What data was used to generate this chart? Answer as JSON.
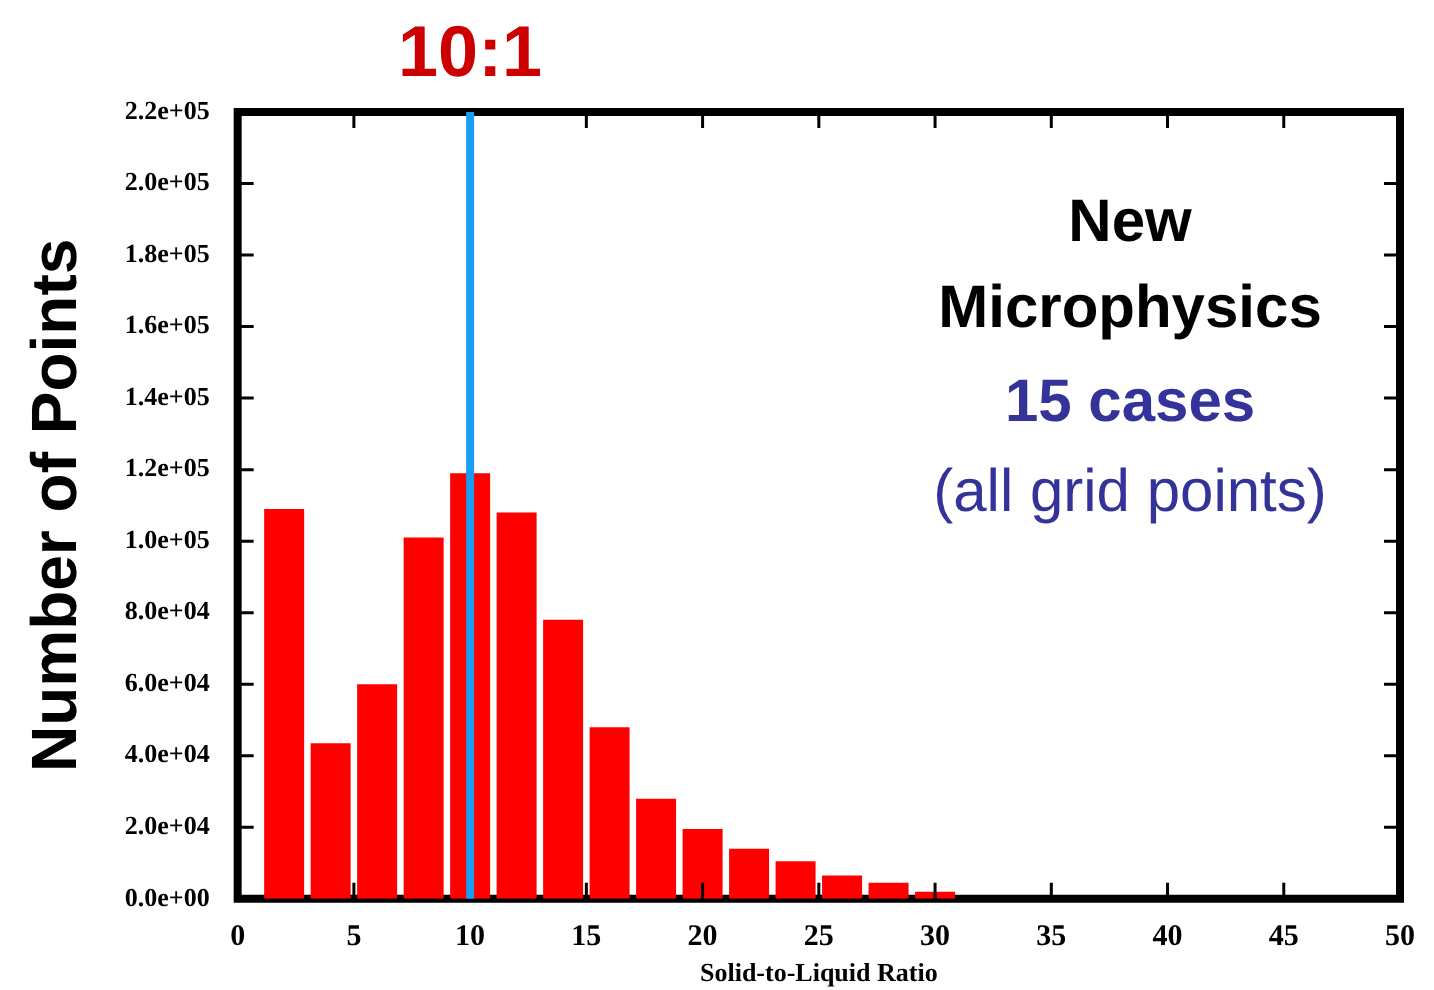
{
  "chart_data": {
    "type": "histogram",
    "xlabel": "Solid-to-Liquid Ratio",
    "ylabel": "Number of Points",
    "bins": [
      1,
      3,
      5,
      7,
      9,
      11,
      13,
      15,
      17,
      19,
      21,
      23,
      25,
      27,
      29,
      31
    ],
    "values": [
      109000,
      43500,
      60000,
      101000,
      119000,
      108000,
      78000,
      48000,
      28000,
      19500,
      14000,
      10500,
      6500,
      4500,
      2000
    ],
    "color": "#ff0000",
    "xlim": [
      0,
      50
    ],
    "xticks": [
      0,
      5,
      10,
      15,
      20,
      25,
      30,
      35,
      40,
      45,
      50
    ],
    "ylim": [
      0,
      220000
    ],
    "yticks": [
      {
        "value": 0,
        "label": "0.0e+00"
      },
      {
        "value": 20000,
        "label": "2.0e+04"
      },
      {
        "value": 40000,
        "label": "4.0e+04"
      },
      {
        "value": 60000,
        "label": "6.0e+04"
      },
      {
        "value": 80000,
        "label": "8.0e+04"
      },
      {
        "value": 100000,
        "label": "1.0e+05"
      },
      {
        "value": 120000,
        "label": "1.2e+05"
      },
      {
        "value": 140000,
        "label": "1.4e+05"
      },
      {
        "value": 160000,
        "label": "1.6e+05"
      },
      {
        "value": 180000,
        "label": "1.8e+05"
      },
      {
        "value": 200000,
        "label": "2.0e+05"
      },
      {
        "value": 220000,
        "label": "2.2e+05"
      }
    ],
    "ref_lines": [
      {
        "axis": "x",
        "value": 10,
        "label": "10:1",
        "color": "#1a9cf0"
      }
    ],
    "annotations": [
      "New",
      "Microphysics",
      "15 cases",
      "(all grid points)"
    ],
    "legend": false
  }
}
